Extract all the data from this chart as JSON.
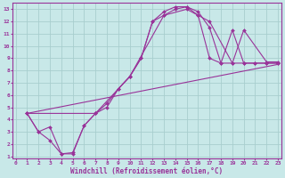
{
  "xlabel": "Windchill (Refroidissement éolien,°C)",
  "background_color": "#c8e8e8",
  "grid_color": "#a8cece",
  "line_color": "#993399",
  "xlim": [
    -0.3,
    23.3
  ],
  "ylim": [
    0.8,
    13.5
  ],
  "xticks": [
    0,
    1,
    2,
    3,
    4,
    5,
    6,
    7,
    8,
    9,
    10,
    11,
    12,
    13,
    14,
    15,
    16,
    17,
    18,
    19,
    20,
    21,
    22,
    23
  ],
  "yticks": [
    1,
    2,
    3,
    4,
    5,
    6,
    7,
    8,
    9,
    10,
    11,
    12,
    13
  ],
  "lines": [
    {
      "x": [
        1,
        2,
        3,
        4,
        5,
        6,
        7,
        8,
        9,
        10,
        11,
        12,
        13,
        14,
        15,
        16,
        17,
        18,
        19,
        20,
        21,
        22,
        23
      ],
      "y": [
        4.5,
        3.0,
        2.3,
        1.2,
        1.2,
        3.5,
        4.5,
        5.0,
        6.5,
        7.5,
        9.0,
        12.0,
        12.5,
        13.0,
        13.2,
        12.5,
        9.0,
        8.6,
        8.6,
        8.6,
        8.6,
        8.6,
        8.6
      ],
      "marker": "D",
      "markersize": 2.0
    },
    {
      "x": [
        1,
        2,
        3,
        4,
        5,
        6,
        7,
        8,
        9,
        10,
        11,
        12,
        13,
        14,
        15,
        16,
        17,
        18,
        19,
        20,
        21,
        22,
        23
      ],
      "y": [
        4.5,
        3.0,
        3.4,
        1.2,
        1.3,
        3.5,
        4.5,
        5.3,
        6.5,
        7.5,
        9.0,
        12.0,
        12.8,
        13.2,
        13.2,
        12.8,
        11.5,
        8.6,
        11.3,
        8.6,
        8.6,
        8.6,
        8.6
      ],
      "marker": "D",
      "markersize": 2.0
    },
    {
      "x": [
        1,
        7,
        10,
        13,
        15,
        16,
        17,
        19,
        20,
        22,
        23
      ],
      "y": [
        4.5,
        4.5,
        7.5,
        12.5,
        13.0,
        12.5,
        12.0,
        8.6,
        11.3,
        8.7,
        8.7
      ],
      "marker": "D",
      "markersize": 2.0
    },
    {
      "x": [
        1,
        23
      ],
      "y": [
        4.5,
        8.5
      ],
      "marker": null,
      "markersize": 0
    }
  ]
}
